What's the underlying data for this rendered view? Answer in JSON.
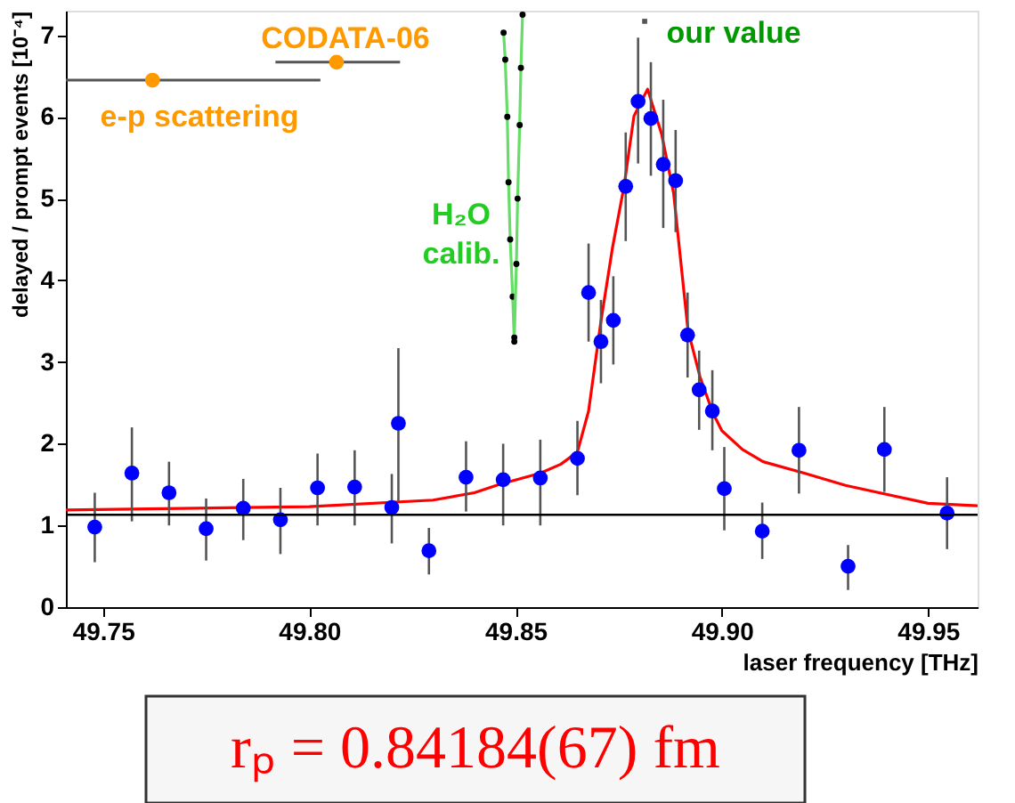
{
  "chart_data": {
    "type": "scatter",
    "xlabel": "laser frequency [THz]",
    "ylabel": "delayed / prompt events [10⁻⁴]",
    "xlim": [
      49.741,
      49.962
    ],
    "ylim": [
      0,
      7.3
    ],
    "xticks": [
      49.75,
      {
        "value": 49.8,
        "label": "49.80"
      },
      49.85,
      {
        "value": 49.9,
        "label": "49.90"
      },
      49.95
    ],
    "yticks": [
      0,
      1,
      2,
      3,
      4,
      5,
      6,
      7
    ],
    "grid": false,
    "marker": "circle",
    "series": [
      {
        "type": "line",
        "color": "#ff0000",
        "marker": "none",
        "x": [
          49.741,
          49.8,
          49.83,
          49.84,
          49.846,
          49.856,
          49.861,
          49.865,
          49.8677,
          49.8707,
          49.8735,
          49.8763,
          49.8787,
          49.882,
          49.8854,
          49.8883,
          49.8918,
          49.8947,
          49.8978,
          49.9,
          49.905,
          49.91,
          49.92,
          49.93,
          49.95,
          49.962
        ],
        "values": [
          1.19,
          1.23,
          1.31,
          1.4,
          1.5,
          1.64,
          1.75,
          1.9,
          2.4,
          3.5,
          4.4,
          5.15,
          6.01,
          6.34,
          5.79,
          5.07,
          3.39,
          2.82,
          2.38,
          2.16,
          1.93,
          1.78,
          1.64,
          1.49,
          1.27,
          1.24
        ]
      },
      {
        "type": "line",
        "color": "#66dd66",
        "x": [
          49.8471,
          49.8475,
          49.848,
          49.8483,
          49.8487,
          49.8493,
          49.8497
        ],
        "values": [
          7.03,
          6.7,
          6.0,
          5.2,
          4.5,
          3.8,
          3.25
        ]
      },
      {
        "type": "line",
        "color": "#66dd66",
        "x": [
          49.8517,
          49.8513,
          49.851,
          49.8505,
          49.8502,
          49.8497
        ],
        "values": [
          7.25,
          6.6,
          5.9,
          5.0,
          4.2,
          3.3
        ]
      },
      {
        "color": "#0000ff",
        "x": [
          49.748,
          49.757,
          49.766,
          49.775,
          49.784,
          49.793,
          49.802,
          49.811,
          49.82,
          49.8216,
          49.829,
          49.838,
          49.847,
          49.856,
          49.865,
          49.8677,
          49.8707,
          49.8737,
          49.8767,
          49.8797,
          49.8828,
          49.8858,
          49.8888,
          49.8917,
          49.8945,
          49.8977,
          49.9006,
          49.9098,
          49.9187,
          49.9306,
          49.9394,
          49.9546
        ],
        "values": [
          0.98,
          1.64,
          1.4,
          0.96,
          1.21,
          1.07,
          1.46,
          1.47,
          1.22,
          2.25,
          0.69,
          1.59,
          1.56,
          1.58,
          1.82,
          3.85,
          3.25,
          3.51,
          5.15,
          6.19,
          5.98,
          5.42,
          5.22,
          3.33,
          2.66,
          2.4,
          1.45,
          0.93,
          1.92,
          0.5,
          1.93,
          1.15
        ],
        "errors": [
          [
            0.55,
            1.4
          ],
          [
            1.05,
            2.2
          ],
          [
            1.0,
            1.78
          ],
          [
            0.57,
            1.33
          ],
          [
            0.82,
            1.57
          ],
          [
            0.65,
            1.46
          ],
          [
            1.0,
            1.88
          ],
          [
            1.0,
            1.92
          ],
          [
            0.78,
            1.63
          ],
          [
            1.3,
            3.17
          ],
          [
            0.4,
            0.97
          ],
          [
            1.17,
            2.03
          ],
          [
            1.0,
            2.0
          ],
          [
            1.0,
            2.05
          ],
          [
            1.37,
            2.28
          ],
          [
            3.25,
            4.45
          ],
          [
            2.74,
            3.76
          ],
          [
            2.97,
            4.05
          ],
          [
            4.48,
            5.81
          ],
          [
            5.43,
            6.97
          ],
          [
            5.28,
            6.67
          ],
          [
            4.64,
            6.21
          ],
          [
            4.59,
            5.84
          ],
          [
            2.81,
            3.85
          ],
          [
            2.17,
            3.14
          ],
          [
            1.92,
            2.9
          ],
          [
            0.94,
            1.96
          ],
          [
            0.59,
            1.28
          ],
          [
            1.39,
            2.45
          ],
          [
            0.21,
            0.76
          ],
          [
            1.41,
            2.45
          ],
          [
            0.71,
            1.59
          ]
        ]
      },
      {
        "type": "scatter",
        "color": "#ff9900",
        "x": [
          49.762,
          49.8066
        ],
        "values": [
          6.45,
          6.67
        ],
        "xerrors": [
          [
            49.741,
            49.8027
          ],
          [
            49.7918,
            49.822
          ]
        ]
      },
      {
        "type": "scatter",
        "color": "#555555",
        "marker": "square",
        "x": [
          49.8813
        ],
        "values": [
          7.17
        ],
        "xerrors": [
          [
            49.8809,
            49.8817
          ]
        ]
      }
    ],
    "ref_lines": [
      {
        "axis": "y",
        "value": 1.13,
        "color": "#000000"
      }
    ],
    "annotations": [
      "CODATA-06",
      "e-p scattering",
      "our value",
      "H₂O calib.",
      "rₚ = 0.84184(67) fm"
    ]
  }
}
